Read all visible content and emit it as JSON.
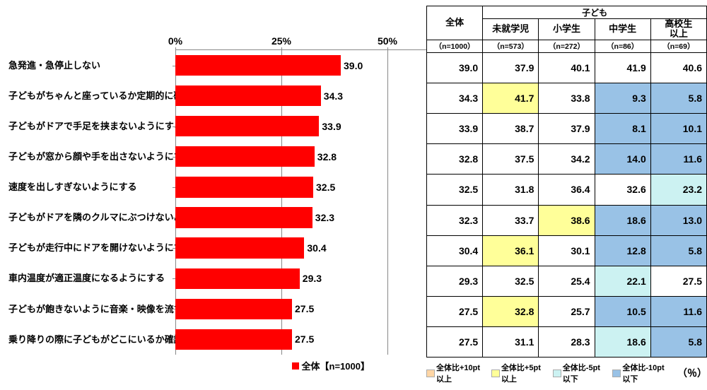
{
  "chart": {
    "type": "bar",
    "axis_max": 50,
    "ticks": [
      0,
      25,
      50
    ],
    "tick_labels": [
      "0%",
      "25%",
      "50%"
    ],
    "bar_color": "#ff0000",
    "grid_color": "#888888",
    "categories": [
      "急発進・急停止しない",
      "子どもがちゃんと座っているか定期的に確認する",
      "子どもがドアで手足を挟まないようにする",
      "子どもが窓から顔や手を出さないようにする",
      "速度を出しすぎないようにする",
      "子どもがドアを隣のクルマにぶつけないようにする",
      "子どもが走行中にドアを開けないようにする",
      "車内温度が適正温度になるようにする",
      "子どもが飽きないように音楽・映像を流す",
      "乗り降りの際に子どもがどこにいるか確認する"
    ],
    "values": [
      39.0,
      34.3,
      33.9,
      32.8,
      32.5,
      32.3,
      30.4,
      29.3,
      27.5,
      27.5
    ],
    "legend": "全体【n=1000】"
  },
  "table": {
    "top_header": "子ども",
    "cols": [
      {
        "name": "全体",
        "n": "（n=1000）"
      },
      {
        "name": "未就学児",
        "n": "（n=573）"
      },
      {
        "name": "小学生",
        "n": "（n=272）"
      },
      {
        "name": "中学生",
        "n": "（n=86）"
      },
      {
        "name": "高校生\n以上",
        "n": "（n=69）"
      }
    ],
    "rows": [
      [
        {
          "v": "39.0"
        },
        {
          "v": "37.9"
        },
        {
          "v": "40.1"
        },
        {
          "v": "41.9"
        },
        {
          "v": "40.6"
        }
      ],
      [
        {
          "v": "34.3"
        },
        {
          "v": "41.7",
          "c": "y"
        },
        {
          "v": "33.8"
        },
        {
          "v": "9.3",
          "c": "b2"
        },
        {
          "v": "5.8",
          "c": "b2"
        }
      ],
      [
        {
          "v": "33.9"
        },
        {
          "v": "38.7"
        },
        {
          "v": "37.9"
        },
        {
          "v": "8.1",
          "c": "b2"
        },
        {
          "v": "10.1",
          "c": "b2"
        }
      ],
      [
        {
          "v": "32.8"
        },
        {
          "v": "37.5"
        },
        {
          "v": "34.2"
        },
        {
          "v": "14.0",
          "c": "b2"
        },
        {
          "v": "11.6",
          "c": "b2"
        }
      ],
      [
        {
          "v": "32.5"
        },
        {
          "v": "31.8"
        },
        {
          "v": "36.4"
        },
        {
          "v": "32.6"
        },
        {
          "v": "23.2",
          "c": "b1"
        }
      ],
      [
        {
          "v": "32.3"
        },
        {
          "v": "33.7"
        },
        {
          "v": "38.6",
          "c": "y"
        },
        {
          "v": "18.6",
          "c": "b2"
        },
        {
          "v": "13.0",
          "c": "b2"
        }
      ],
      [
        {
          "v": "30.4"
        },
        {
          "v": "36.1",
          "c": "y"
        },
        {
          "v": "30.1"
        },
        {
          "v": "12.8",
          "c": "b2"
        },
        {
          "v": "5.8",
          "c": "b2"
        }
      ],
      [
        {
          "v": "29.3"
        },
        {
          "v": "32.5"
        },
        {
          "v": "25.4"
        },
        {
          "v": "22.1",
          "c": "b1"
        },
        {
          "v": "27.5"
        }
      ],
      [
        {
          "v": "27.5"
        },
        {
          "v": "32.8",
          "c": "y"
        },
        {
          "v": "25.7"
        },
        {
          "v": "10.5",
          "c": "b2"
        },
        {
          "v": "11.6",
          "c": "b2"
        }
      ],
      [
        {
          "v": "27.5"
        },
        {
          "v": "31.1"
        },
        {
          "v": "28.3"
        },
        {
          "v": "18.6",
          "c": "b1"
        },
        {
          "v": "5.8",
          "c": "b2"
        }
      ]
    ]
  },
  "highlight_colors": {
    "o": "#ffd6a5",
    "y": "#ffff99",
    "b1": "#ccf2f2",
    "b2": "#99c2e6"
  },
  "legend2": [
    {
      "c": "o",
      "label": "全体比+10pt以上"
    },
    {
      "c": "y",
      "label": "全体比+5pt以上"
    },
    {
      "c": "b1",
      "label": "全体比-5pt以下"
    },
    {
      "c": "b2",
      "label": "全体比-10pt以下"
    }
  ],
  "legend2_suffix": "（％）"
}
